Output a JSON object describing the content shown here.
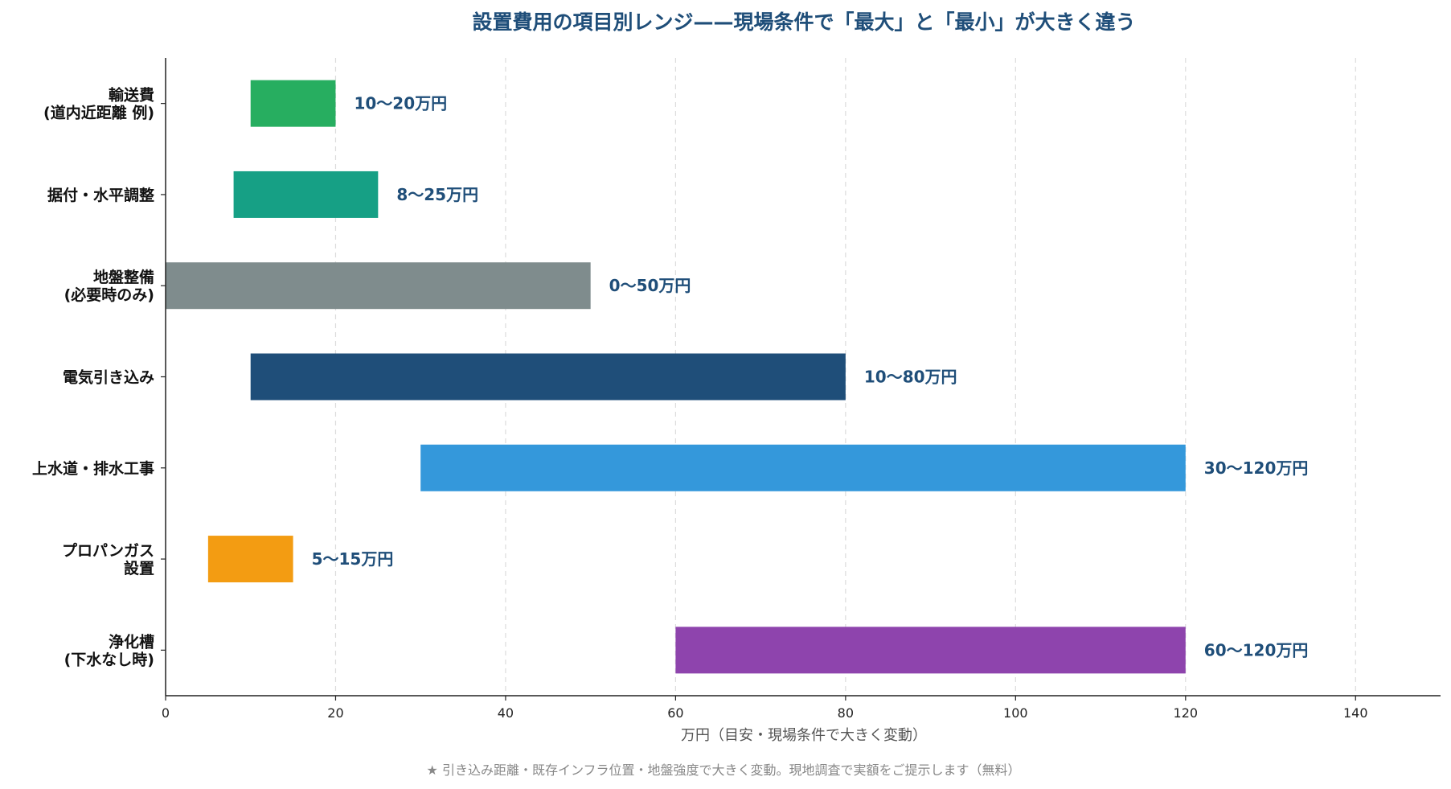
{
  "chart_data": {
    "type": "bar",
    "orientation": "horizontal",
    "bar_style": "floating-range",
    "title": "設置費用の項目別レンジ——現場条件で「最大」と「最小」が大きく違う",
    "xlabel": "万円（目安・現場条件で大きく変動）",
    "ylabel": "",
    "xlim": [
      0,
      150
    ],
    "xticks": [
      0,
      20,
      40,
      60,
      80,
      100,
      120,
      140
    ],
    "grid": true,
    "grid_axis": "x",
    "categories": [
      {
        "lines": [
          "輸送費",
          "(道内近距離 例)"
        ]
      },
      {
        "lines": [
          "据付・水平調整"
        ]
      },
      {
        "lines": [
          "地盤整備",
          "(必要時のみ)"
        ]
      },
      {
        "lines": [
          "電気引き込み"
        ]
      },
      {
        "lines": [
          "上水道・排水工事"
        ]
      },
      {
        "lines": [
          "プロパンガス",
          "設置"
        ]
      },
      {
        "lines": [
          "浄化槽",
          "(下水なし時)"
        ]
      }
    ],
    "ranges": [
      {
        "min": 10,
        "max": 20,
        "label": "10〜20万円",
        "color": "#27ae60"
      },
      {
        "min": 8,
        "max": 25,
        "label": "8〜25万円",
        "color": "#16a085"
      },
      {
        "min": 0,
        "max": 50,
        "label": "0〜50万円",
        "color": "#7f8c8d"
      },
      {
        "min": 10,
        "max": 80,
        "label": "10〜80万円",
        "color": "#1f4e79"
      },
      {
        "min": 30,
        "max": 120,
        "label": "30〜120万円",
        "color": "#3498db"
      },
      {
        "min": 5,
        "max": 15,
        "label": "5〜15万円",
        "color": "#f39c12"
      },
      {
        "min": 60,
        "max": 120,
        "label": "60〜120万円",
        "color": "#8e44ad"
      }
    ]
  },
  "footnote": "★ 引き込み距離・既存インフラ位置・地盤強度で大きく変動。現地調査で実額をご提示します（無料）"
}
